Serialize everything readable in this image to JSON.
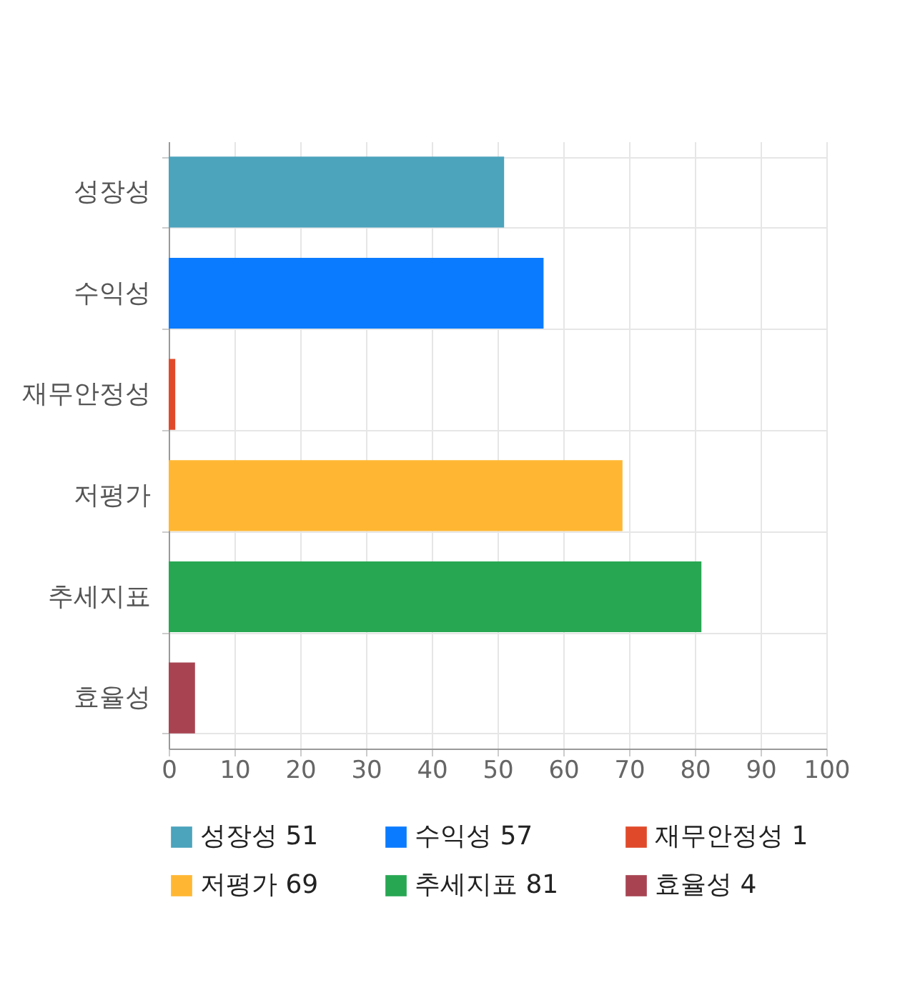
{
  "chart_data": {
    "type": "bar",
    "orientation": "horizontal",
    "categories": [
      "성장성",
      "수익성",
      "재무안정성",
      "저평가",
      "추세지표",
      "효율성"
    ],
    "series": [
      {
        "name": "성장성 51",
        "color": "#4ba3bc",
        "values": [
          51,
          null,
          null,
          null,
          null,
          null
        ]
      },
      {
        "name": "수익성 57",
        "color": "#0a7bff",
        "values": [
          null,
          57,
          null,
          null,
          null,
          null
        ]
      },
      {
        "name": "재무안정성 1",
        "color": "#e04a2a",
        "values": [
          null,
          null,
          1,
          null,
          null,
          null
        ]
      },
      {
        "name": "저평가 69",
        "color": "#ffb733",
        "values": [
          null,
          null,
          null,
          69,
          null,
          null
        ]
      },
      {
        "name": "추세지표 81",
        "color": "#28a753",
        "values": [
          null,
          null,
          null,
          null,
          81,
          null
        ]
      },
      {
        "name": "효율성 4",
        "color": "#a84452",
        "values": [
          null,
          null,
          null,
          null,
          null,
          4
        ]
      }
    ],
    "xlim": [
      0,
      100
    ],
    "xticks": [
      0,
      10,
      20,
      30,
      40,
      50,
      60,
      70,
      80,
      90,
      100
    ],
    "grid": true,
    "legend": "bottom"
  }
}
